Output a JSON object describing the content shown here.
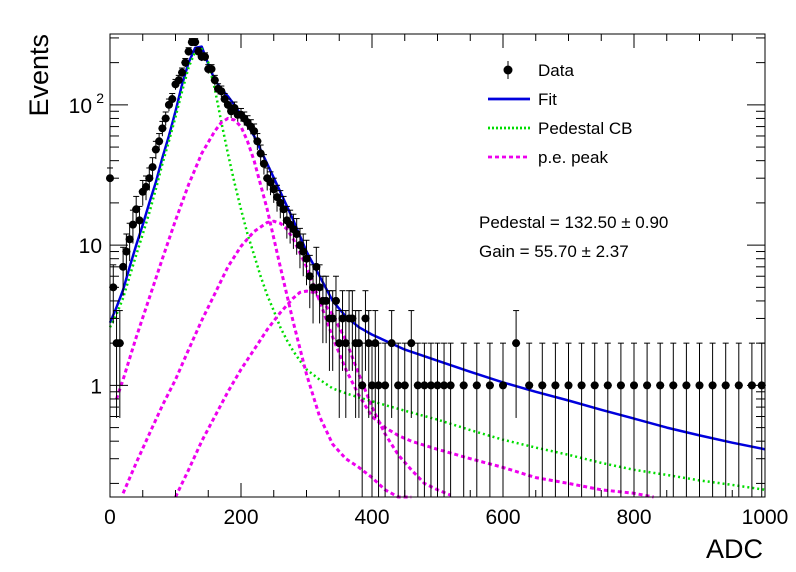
{
  "chart_data": {
    "type": "scatter",
    "xlabel": "ADC",
    "ylabel": "Events",
    "xlim": [
      0,
      1000
    ],
    "ylim": [
      0.16,
      320
    ],
    "y_scale": "log",
    "grid": false,
    "legend_placement": "top-right",
    "x_ticks": [
      {
        "value": 0,
        "label": "0"
      },
      {
        "value": 200,
        "label": "200"
      },
      {
        "value": 400,
        "label": "400"
      },
      {
        "value": 600,
        "label": "600"
      },
      {
        "value": 800,
        "label": "800"
      },
      {
        "value": 1000,
        "label": "1000"
      }
    ],
    "y_ticks": [
      {
        "value": 1,
        "label": "1",
        "sup": ""
      },
      {
        "value": 10,
        "label": "10",
        "sup": ""
      },
      {
        "value": 100,
        "label": "10",
        "sup": "2"
      }
    ],
    "legend": [
      {
        "label": "Data",
        "kind": "marker",
        "color": "#000000"
      },
      {
        "label": "Fit",
        "kind": "solid",
        "color": "#0000dd"
      },
      {
        "label": "Pedestal CB",
        "kind": "dotted",
        "color": "#00dd00"
      },
      {
        "label": "p.e. peak",
        "kind": "dashed",
        "color": "#ee00ee"
      }
    ],
    "annotations": [
      {
        "text": "Pedestal = 132.50 ± 0.90"
      },
      {
        "text": "Gain = 55.70 ± 2.37"
      }
    ],
    "series": [
      {
        "name": "Data",
        "kind": "points",
        "color": "#000000",
        "x": [
          0,
          5,
          10,
          15,
          20,
          25,
          30,
          35,
          40,
          45,
          50,
          55,
          60,
          65,
          70,
          75,
          80,
          85,
          90,
          95,
          100,
          105,
          110,
          115,
          120,
          125,
          130,
          135,
          140,
          145,
          150,
          155,
          160,
          165,
          170,
          175,
          180,
          185,
          190,
          195,
          200,
          205,
          210,
          215,
          220,
          225,
          230,
          235,
          240,
          245,
          250,
          255,
          260,
          265,
          270,
          275,
          280,
          285,
          290,
          295,
          300,
          305,
          310,
          315,
          320,
          325,
          330,
          335,
          340,
          345,
          350,
          355,
          360,
          365,
          370,
          375,
          380,
          385,
          390,
          395,
          400,
          405,
          410,
          420,
          430,
          440,
          450,
          460,
          470,
          480,
          490,
          500,
          510,
          520,
          540,
          560,
          580,
          600,
          620,
          640,
          660,
          680,
          700,
          720,
          740,
          760,
          780,
          800,
          820,
          840,
          860,
          880,
          900,
          920,
          940,
          960,
          980,
          995
        ],
        "y": [
          30,
          5,
          2,
          2,
          7,
          9,
          11,
          14,
          18,
          15,
          24,
          26,
          30,
          36,
          48,
          55,
          68,
          80,
          100,
          110,
          140,
          150,
          170,
          200,
          240,
          280,
          280,
          240,
          220,
          220,
          180,
          180,
          150,
          130,
          125,
          110,
          100,
          90,
          95,
          85,
          85,
          80,
          75,
          70,
          65,
          55,
          45,
          38,
          30,
          28,
          25,
          22,
          20,
          18,
          15,
          14,
          13,
          12,
          10,
          9,
          8,
          6,
          5,
          7,
          5,
          4,
          4,
          3,
          3,
          4,
          2,
          3,
          2,
          3,
          3,
          2,
          2,
          1,
          3,
          2,
          1,
          2,
          1,
          1,
          2,
          1,
          1,
          2,
          1,
          1,
          1,
          1,
          1,
          1,
          1,
          1,
          1,
          1,
          2,
          1,
          1,
          1,
          1,
          1,
          1,
          1,
          1,
          1,
          1,
          1,
          1,
          1,
          1,
          1,
          1,
          1,
          1,
          1
        ]
      },
      {
        "name": "Fit",
        "kind": "solid",
        "color": "#0000dd",
        "x": [
          0,
          10,
          20,
          30,
          40,
          50,
          60,
          70,
          80,
          90,
          100,
          110,
          120,
          130,
          140,
          150,
          160,
          170,
          180,
          190,
          200,
          220,
          240,
          260,
          280,
          300,
          320,
          340,
          360,
          380,
          400,
          450,
          500,
          550,
          600,
          650,
          700,
          750,
          800,
          850,
          900,
          950,
          1000
        ],
        "y": [
          2.8,
          3.6,
          4.8,
          7,
          10,
          14,
          20,
          28,
          42,
          60,
          90,
          140,
          200,
          255,
          260,
          195,
          150,
          130,
          115,
          100,
          85,
          60,
          38,
          24,
          15,
          9,
          6,
          4,
          3.1,
          2.6,
          2.3,
          1.8,
          1.5,
          1.25,
          1.05,
          0.9,
          0.78,
          0.67,
          0.58,
          0.5,
          0.44,
          0.39,
          0.35
        ]
      },
      {
        "name": "Pedestal CB",
        "kind": "dotted",
        "color": "#00dd00",
        "x": [
          0,
          10,
          20,
          30,
          40,
          50,
          60,
          70,
          80,
          90,
          100,
          110,
          120,
          130,
          140,
          150,
          160,
          170,
          180,
          190,
          200,
          210,
          220,
          230,
          240,
          250,
          260,
          270,
          280,
          290,
          300,
          320,
          340,
          360,
          380,
          400,
          450,
          500,
          550,
          600,
          650,
          700,
          750,
          800,
          850,
          900,
          950,
          1000
        ],
        "y": [
          2.6,
          3.2,
          4.2,
          6,
          8.5,
          12,
          17,
          25,
          38,
          55,
          82,
          125,
          185,
          240,
          250,
          200,
          130,
          75,
          45,
          28,
          18,
          12,
          8.5,
          6,
          4.4,
          3.4,
          2.6,
          2.1,
          1.75,
          1.5,
          1.3,
          1.1,
          0.95,
          0.88,
          0.82,
          0.77,
          0.66,
          0.57,
          0.48,
          0.41,
          0.36,
          0.32,
          0.28,
          0.25,
          0.23,
          0.21,
          0.195,
          0.18
        ]
      },
      {
        "name": "p.e. peak",
        "kind": "dashed",
        "color": "#ee00ee",
        "x": [
          10,
          20,
          40,
          60,
          80,
          100,
          120,
          140,
          160,
          170,
          180,
          190,
          200,
          210,
          220,
          240,
          260,
          280,
          300,
          320,
          340,
          360,
          380,
          400,
          420,
          440,
          460
        ],
        "y": [
          0.8,
          1.1,
          2.2,
          4.2,
          8,
          15,
          27,
          45,
          65,
          75,
          80,
          78,
          70,
          55,
          40,
          18,
          7,
          2.8,
          1.2,
          0.6,
          0.38,
          0.3,
          0.26,
          0.22,
          0.18,
          0.16,
          0.15
        ]
      },
      {
        "name": "p.e. peak",
        "kind": "dashed",
        "color": "#ee00ee",
        "x": [
          20,
          40,
          60,
          80,
          100,
          120,
          140,
          160,
          180,
          200,
          220,
          240,
          250,
          260,
          270,
          280,
          300,
          320,
          340,
          360,
          380,
          400,
          420,
          440,
          460,
          500,
          550,
          600,
          650,
          700,
          750,
          800,
          830
        ],
        "y": [
          0.17,
          0.28,
          0.45,
          0.72,
          1.1,
          1.8,
          2.9,
          4.5,
          7,
          9.8,
          12.5,
          14.5,
          14.8,
          14.3,
          13,
          11,
          7,
          4,
          2.2,
          1.3,
          0.85,
          0.6,
          0.5,
          0.44,
          0.4,
          0.35,
          0.3,
          0.26,
          0.22,
          0.2,
          0.18,
          0.17,
          0.16
        ]
      },
      {
        "name": "p.e. peak",
        "kind": "dashed",
        "color": "#ee00ee",
        "x": [
          100,
          120,
          140,
          160,
          180,
          200,
          220,
          240,
          260,
          280,
          290,
          300,
          310,
          320,
          340,
          360,
          380,
          400,
          420,
          440,
          460,
          480,
          500,
          520
        ],
        "y": [
          0.16,
          0.25,
          0.4,
          0.6,
          0.9,
          1.3,
          1.8,
          2.5,
          3.3,
          4.2,
          4.6,
          4.7,
          4.6,
          4.2,
          3.2,
          2.1,
          1.2,
          0.7,
          0.45,
          0.32,
          0.25,
          0.2,
          0.18,
          0.165
        ]
      }
    ]
  }
}
